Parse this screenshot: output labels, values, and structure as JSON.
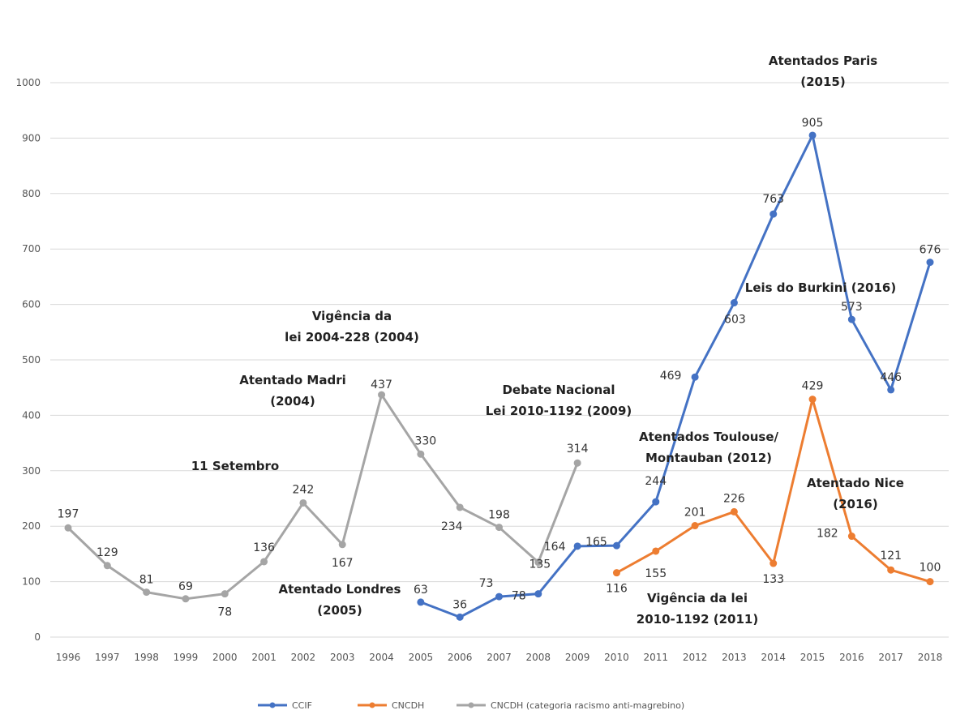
{
  "chart_data": {
    "type": "line",
    "categories": [
      "1996",
      "1997",
      "1998",
      "1999",
      "2000",
      "2001",
      "2002",
      "2003",
      "2004",
      "2005",
      "2006",
      "2007",
      "2008",
      "2009",
      "2010",
      "2011",
      "2012",
      "2013",
      "2014",
      "2015",
      "2016",
      "2017",
      "2018"
    ],
    "ylim": [
      0,
      1000
    ],
    "yticks": [
      0,
      100,
      200,
      300,
      400,
      500,
      600,
      700,
      800,
      900,
      1000
    ],
    "grid": true,
    "legend_position": "bottom",
    "series": [
      {
        "name": "CCIF",
        "color": "#4472C4",
        "values": [
          null,
          null,
          null,
          null,
          null,
          null,
          null,
          null,
          null,
          63,
          36,
          73,
          78,
          164,
          165,
          244,
          469,
          603,
          763,
          905,
          573,
          446,
          676
        ],
        "labels": [
          "",
          "",
          "",
          "",
          "",
          "",
          "",
          "",
          "",
          "63",
          "36",
          "73",
          "78",
          "164",
          "165",
          "244",
          "469",
          "603",
          "763",
          "905",
          "573",
          "446",
          "676"
        ]
      },
      {
        "name": "CNCDH",
        "color": "#ED7D31",
        "values": [
          null,
          null,
          null,
          null,
          null,
          null,
          null,
          null,
          null,
          null,
          null,
          null,
          null,
          null,
          116,
          155,
          201,
          226,
          133,
          429,
          182,
          121,
          100
        ],
        "labels": [
          "",
          "",
          "",
          "",
          "",
          "",
          "",
          "",
          "",
          "",
          "",
          "",
          "",
          "",
          "116",
          "155",
          "201",
          "226",
          "133",
          "429",
          "182",
          "121",
          "100"
        ]
      },
      {
        "name": "CNCDH (categoria racismo anti-magrebino)",
        "color": "#A5A5A5",
        "values": [
          197,
          129,
          81,
          69,
          78,
          136,
          242,
          167,
          437,
          330,
          234,
          198,
          135,
          314,
          null,
          null,
          null,
          null,
          null,
          null,
          null,
          null,
          null
        ],
        "labels": [
          "197",
          "129",
          "81",
          "69",
          "78",
          "136",
          "242",
          "167",
          "437",
          "330",
          "234",
          "198",
          "135",
          "314",
          "",
          "",
          "",
          "",
          "",
          "",
          "",
          "",
          ""
        ]
      }
    ],
    "annotations": [
      {
        "lines": [
          "Atentados Paris",
          "(2015)"
        ]
      },
      {
        "lines": [
          "Leis do Burkini (2016)"
        ]
      },
      {
        "lines": [
          "Vigência da",
          "lei 2004-228 (2004)"
        ]
      },
      {
        "lines": [
          "Atentado Madri",
          "(2004)"
        ]
      },
      {
        "lines": [
          "Debate Nacional",
          "Lei 2010-1192 (2009)"
        ]
      },
      {
        "lines": [
          "11 Setembro"
        ]
      },
      {
        "lines": [
          "Atentados Toulouse/",
          "Montauban (2012)"
        ]
      },
      {
        "lines": [
          "Atentado Nice",
          "(2016)"
        ]
      },
      {
        "lines": [
          "Atentado Londres",
          "(2005)"
        ]
      },
      {
        "lines": [
          "Vigência da lei",
          "2010-1192 (2011)"
        ]
      }
    ]
  }
}
